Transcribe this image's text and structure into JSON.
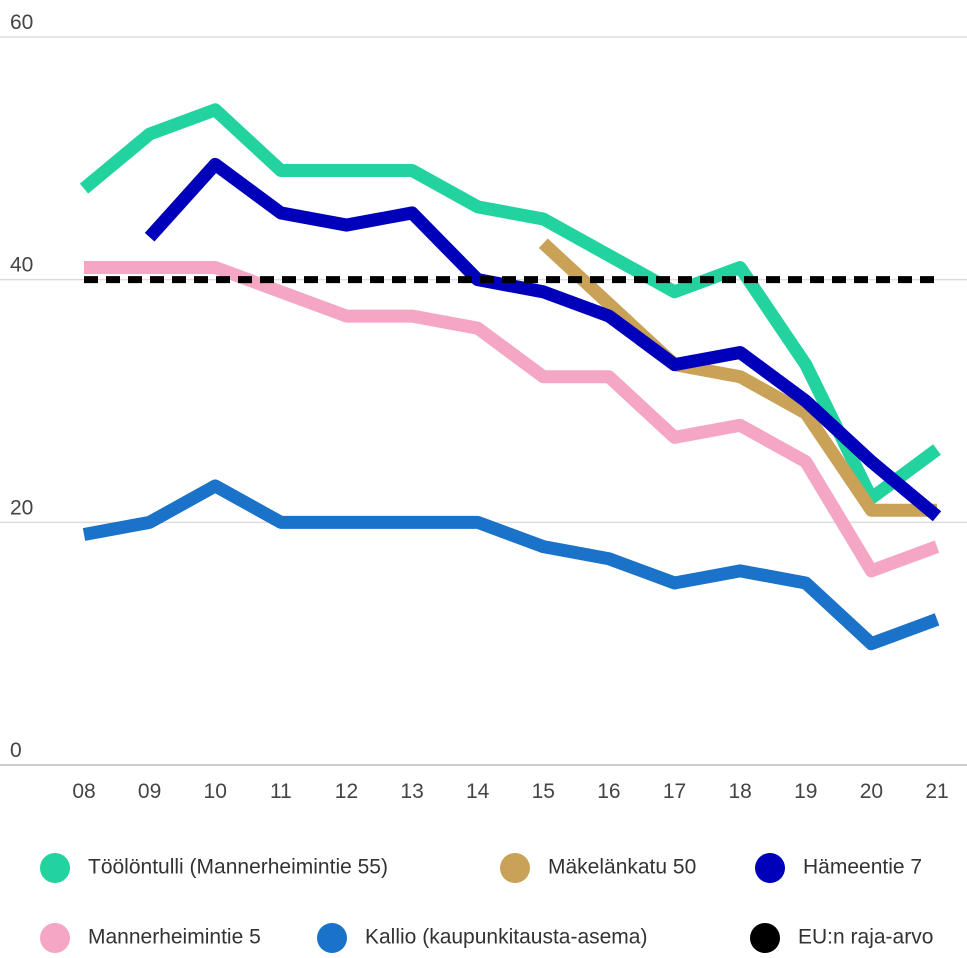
{
  "chart_data": {
    "type": "line",
    "categories": [
      "08",
      "09",
      "10",
      "11",
      "12",
      "13",
      "14",
      "15",
      "16",
      "17",
      "18",
      "19",
      "20",
      "21"
    ],
    "ylim": [
      0,
      60
    ],
    "yticks": [
      0,
      20,
      40,
      60
    ],
    "grid": true,
    "series": [
      {
        "name": "Töölöntulli (Mannerheimintie 55)",
        "color": "#22d3a0",
        "values": [
          47.5,
          52,
          54,
          49,
          49,
          49,
          46,
          45,
          42,
          39,
          41,
          33,
          22,
          26
        ]
      },
      {
        "name": "Mäkelänkatu 50",
        "color": "#c9a157",
        "values": [
          null,
          null,
          null,
          null,
          null,
          null,
          null,
          43,
          38,
          33,
          32,
          29,
          21,
          21
        ]
      },
      {
        "name": "Hämeentie 7",
        "color": "#0000bb",
        "values": [
          null,
          43.5,
          49.5,
          45.5,
          44.5,
          45.5,
          40,
          39,
          37,
          33,
          34,
          30,
          25,
          20.5
        ]
      },
      {
        "name": "Mannerheimintie 5",
        "color": "#f4a6c4",
        "values": [
          41,
          41,
          41,
          39,
          37,
          37,
          36,
          32,
          32,
          27,
          28,
          25,
          16,
          18
        ]
      },
      {
        "name": "Kallio (kaupunkitausta-asema)",
        "color": "#1a72c9",
        "values": [
          19,
          20,
          23,
          20,
          20,
          20,
          20,
          18,
          17,
          15,
          16,
          15,
          10,
          12
        ]
      },
      {
        "name": "EU:n raja-arvo",
        "color": "#000000",
        "dashed": true,
        "values": [
          40,
          40,
          40,
          40,
          40,
          40,
          40,
          40,
          40,
          40,
          40,
          40,
          40,
          40
        ]
      }
    ]
  }
}
